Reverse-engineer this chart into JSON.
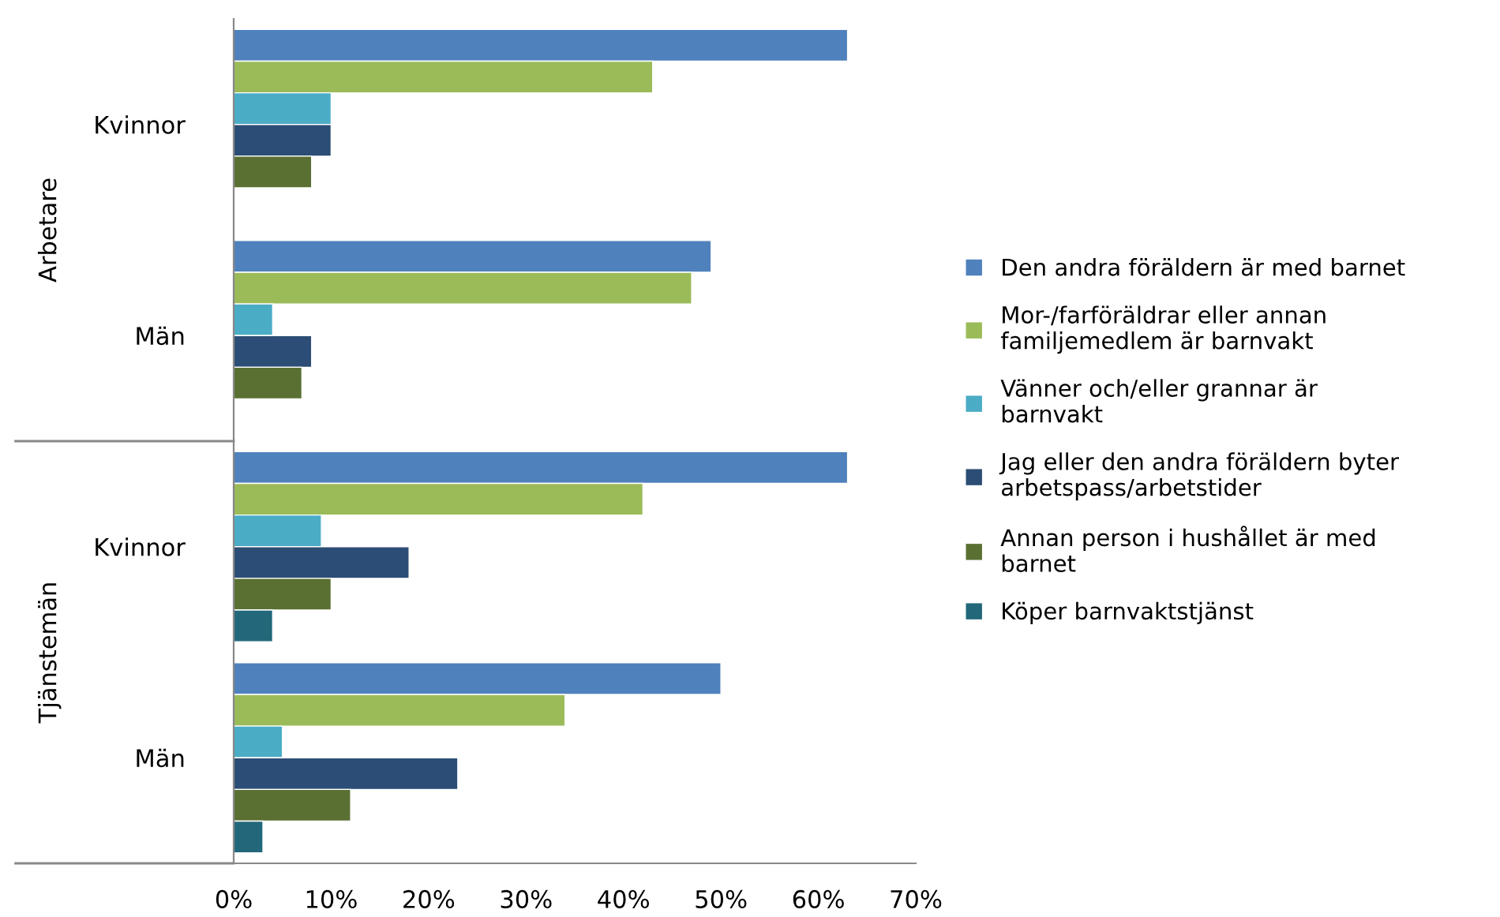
{
  "chart_data": {
    "type": "bar",
    "orientation": "horizontal",
    "categories": [
      "Kvinnor",
      "Män",
      "Kvinnor",
      "Män"
    ],
    "annotations": [
      "Arbetare",
      "Tjänstemän"
    ],
    "series": [
      {
        "name": "Den andra föräldern är med barnet",
        "color": "#4f81bd",
        "values": [
          63,
          49,
          63,
          50
        ]
      },
      {
        "name": "Mor-/farföräldrar eller annan\nfamiljemedlem är barnvakt",
        "color": "#9bbb59",
        "values": [
          43,
          47,
          42,
          34
        ]
      },
      {
        "name": "Vänner och/eller grannar är\nbarnvakt",
        "color": "#4bacc6",
        "values": [
          10,
          4,
          9,
          5
        ]
      },
      {
        "name": "Jag eller den andra föräldern byter\narbetspass/arbetstider",
        "color": "#2c4d75",
        "values": [
          10,
          8,
          18,
          23
        ]
      },
      {
        "name": "Annan person i hushållet är med\nbarnet",
        "color": "#5a7033",
        "values": [
          8,
          7,
          10,
          12
        ]
      },
      {
        "name": "Köper barnvaktstjänst",
        "color": "#22687a",
        "values": [
          null,
          null,
          4,
          3
        ]
      }
    ],
    "xlim": [
      0,
      70
    ],
    "xticks": [
      {
        "value": 0,
        "label": "0%"
      },
      {
        "value": 10,
        "label": "10%"
      },
      {
        "value": 20,
        "label": "20%"
      },
      {
        "value": 30,
        "label": "30%"
      },
      {
        "value": 40,
        "label": "40%"
      },
      {
        "value": 50,
        "label": "50%"
      },
      {
        "value": 60,
        "label": "60%"
      },
      {
        "value": 70,
        "label": "70%"
      }
    ],
    "grid": false,
    "legend": "right"
  }
}
